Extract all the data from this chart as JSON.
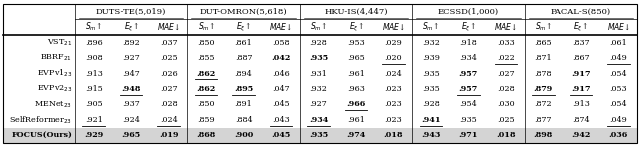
{
  "datasets": [
    "DUTS-TE(5,019)",
    "DUT-OMRON(5,618)",
    "HKU-IS(4,447)",
    "ECSSD(1,000)",
    "PACAL-S(850)"
  ],
  "methods_display": [
    "VST$_{21}$",
    "BBRF$_{21}$",
    "EVPv1$_{23}$",
    "EVPv2$_{23}$",
    "MENet$_{23}$",
    "SelfReformer$_{23}$",
    "FOCUS(Ours)"
  ],
  "data": [
    [
      ".896",
      ".892",
      ".037",
      ".850",
      ".861",
      ".058",
      ".928",
      ".953",
      ".029",
      ".932",
      ".918",
      ".033",
      ".865",
      ".837",
      ".061"
    ],
    [
      ".908",
      ".927",
      ".025",
      ".855",
      ".887",
      ".042",
      ".935",
      ".965",
      ".020",
      ".939",
      ".934",
      ".022",
      ".871",
      ".867",
      ".049"
    ],
    [
      ".913",
      ".947",
      ".026",
      ".862",
      ".894",
      ".046",
      ".931",
      ".961",
      ".024",
      ".935",
      ".957",
      ".027",
      ".878",
      ".917",
      ".054"
    ],
    [
      ".915",
      ".948",
      ".027",
      ".862",
      ".895",
      ".047",
      ".932",
      ".963",
      ".023",
      ".935",
      ".957",
      ".028",
      ".879",
      ".917",
      ".053"
    ],
    [
      ".905",
      ".937",
      ".028",
      ".850",
      ".891",
      ".045",
      ".927",
      ".966",
      ".023",
      ".928",
      ".954",
      ".030",
      ".872",
      ".913",
      ".054"
    ],
    [
      ".921",
      ".924",
      ".024",
      ".859",
      ".884",
      ".043",
      ".934",
      ".961",
      ".023",
      ".941",
      ".935",
      ".025",
      ".877",
      ".874",
      ".049"
    ],
    [
      ".929",
      ".965",
      ".019",
      ".868",
      ".900",
      ".045",
      ".935",
      ".974",
      ".018",
      ".943",
      ".971",
      ".018",
      ".898",
      ".942",
      ".036"
    ]
  ],
  "bold": [
    [
      false,
      false,
      false,
      false,
      false,
      false,
      false,
      false,
      false,
      false,
      false,
      false,
      false,
      false,
      false
    ],
    [
      false,
      false,
      false,
      false,
      false,
      true,
      true,
      false,
      false,
      false,
      false,
      false,
      false,
      false,
      false
    ],
    [
      false,
      false,
      false,
      true,
      false,
      false,
      false,
      false,
      false,
      false,
      true,
      false,
      false,
      true,
      false
    ],
    [
      false,
      true,
      false,
      true,
      true,
      false,
      false,
      false,
      false,
      false,
      true,
      false,
      true,
      true,
      false
    ],
    [
      false,
      false,
      false,
      false,
      false,
      false,
      false,
      true,
      false,
      false,
      false,
      false,
      false,
      false,
      false
    ],
    [
      false,
      false,
      false,
      false,
      false,
      false,
      true,
      false,
      false,
      true,
      false,
      false,
      false,
      false,
      false
    ],
    [
      true,
      true,
      true,
      true,
      true,
      false,
      true,
      true,
      true,
      true,
      true,
      true,
      true,
      true,
      true
    ]
  ],
  "underline": [
    [
      false,
      false,
      false,
      false,
      false,
      false,
      false,
      false,
      false,
      false,
      false,
      false,
      false,
      false,
      false
    ],
    [
      false,
      false,
      false,
      false,
      false,
      false,
      false,
      false,
      true,
      false,
      false,
      true,
      false,
      false,
      true
    ],
    [
      false,
      false,
      false,
      true,
      false,
      false,
      false,
      false,
      false,
      false,
      false,
      false,
      false,
      false,
      false
    ],
    [
      false,
      true,
      false,
      true,
      true,
      false,
      false,
      false,
      false,
      false,
      true,
      false,
      true,
      true,
      false
    ],
    [
      false,
      false,
      false,
      false,
      false,
      false,
      false,
      true,
      false,
      false,
      false,
      false,
      false,
      false,
      false
    ],
    [
      true,
      false,
      true,
      false,
      false,
      true,
      true,
      false,
      false,
      true,
      false,
      false,
      false,
      false,
      true
    ],
    [
      false,
      false,
      false,
      false,
      false,
      false,
      false,
      false,
      false,
      false,
      false,
      false,
      false,
      false,
      false
    ]
  ],
  "bg_last_row": "#d4d4d4",
  "fontsize": 5.8,
  "header_fontsize": 6.0,
  "metric_fontsize": 5.5
}
